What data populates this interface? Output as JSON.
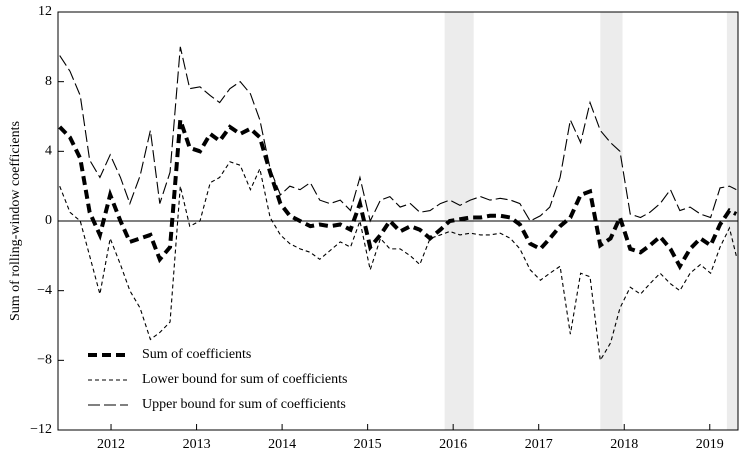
{
  "chart_data": {
    "type": "line",
    "ylabel": "Sum of rolling-window coefficients",
    "xlim": [
      2011.38,
      2019.33
    ],
    "ylim": [
      -12,
      12
    ],
    "xticks": [
      2012,
      2013,
      2014,
      2015,
      2016,
      2017,
      2018,
      2019
    ],
    "yticks": [
      12,
      8,
      4,
      0,
      {
        "value": -4,
        "label": "−4"
      },
      {
        "value": -8,
        "label": "−8"
      },
      {
        "value": -12,
        "label": "−12"
      }
    ],
    "grid": false,
    "hline": 0,
    "legend": "lower left",
    "shaded_x": [
      [
        2015.9,
        2016.24
      ],
      [
        2017.72,
        2017.98
      ],
      [
        2019.2,
        2019.33
      ]
    ],
    "x": [
      2011.4,
      2011.52,
      2011.64,
      2011.75,
      2011.87,
      2011.99,
      2012.11,
      2012.22,
      2012.34,
      2012.46,
      2012.57,
      2012.69,
      2012.81,
      2012.92,
      2013.04,
      2013.16,
      2013.27,
      2013.39,
      2013.51,
      2013.63,
      2013.74,
      2013.86,
      2013.98,
      2014.09,
      2014.21,
      2014.33,
      2014.44,
      2014.56,
      2014.68,
      2014.8,
      2014.91,
      2015.03,
      2015.15,
      2015.26,
      2015.38,
      2015.5,
      2015.61,
      2015.73,
      2015.85,
      2015.96,
      2016.08,
      2016.2,
      2016.32,
      2016.43,
      2016.55,
      2016.67,
      2016.78,
      2016.9,
      2017.02,
      2017.13,
      2017.25,
      2017.37,
      2017.49,
      2017.6,
      2017.72,
      2017.84,
      2017.95,
      2018.07,
      2018.19,
      2018.3,
      2018.42,
      2018.54,
      2018.65,
      2018.77,
      2018.89,
      2019.01,
      2019.12,
      2019.23,
      2019.31
    ],
    "series": [
      {
        "name": "Sum of coefficients",
        "color": "#000000",
        "width": 4,
        "dash": "9 5",
        "values": [
          5.4,
          4.8,
          3.6,
          0.5,
          -0.8,
          1.5,
          0,
          -1.2,
          -1.0,
          -0.8,
          -2.2,
          -1.5,
          5.8,
          4.2,
          4.0,
          5.0,
          4.6,
          5.4,
          5.0,
          5.3,
          4.8,
          2.8,
          1.0,
          0.3,
          0.0,
          -0.3,
          -0.2,
          -0.3,
          -0.2,
          -0.5,
          1.0,
          -1.5,
          -0.8,
          0.0,
          -0.6,
          -0.3,
          -0.5,
          -1.0,
          -0.5,
          0.0,
          0.1,
          0.2,
          0.2,
          0.3,
          0.3,
          0.2,
          -0.2,
          -1.3,
          -1.6,
          -1.0,
          -0.3,
          0.2,
          1.5,
          1.7,
          -1.4,
          -1.0,
          0.2,
          -1.6,
          -1.8,
          -1.4,
          -0.9,
          -1.6,
          -2.6,
          -1.6,
          -1.0,
          -1.4,
          -0.2,
          0.6,
          0.4
        ]
      },
      {
        "name": "Lower bound for sum of coefficients",
        "color": "#000000",
        "width": 1.1,
        "dash": "4 3",
        "values": [
          2.0,
          0.5,
          0.0,
          -2.0,
          -4.2,
          -1.0,
          -2.5,
          -4.0,
          -5.0,
          -6.8,
          -6.4,
          -5.8,
          2.0,
          -0.3,
          0.0,
          2.2,
          2.5,
          3.4,
          3.2,
          1.8,
          3.0,
          0.2,
          -0.8,
          -1.3,
          -1.6,
          -1.8,
          -2.2,
          -1.7,
          -1.2,
          -1.5,
          0.0,
          -2.8,
          -1.0,
          -1.6,
          -1.6,
          -2.0,
          -2.5,
          -1.0,
          -0.8,
          -0.6,
          -0.8,
          -0.7,
          -0.8,
          -0.8,
          -0.7,
          -1.0,
          -1.6,
          -2.8,
          -3.4,
          -3.0,
          -2.6,
          -6.5,
          -3.0,
          -3.2,
          -8.0,
          -7.0,
          -5.0,
          -3.8,
          -4.2,
          -3.6,
          -3.0,
          -3.6,
          -4.0,
          -3.0,
          -2.5,
          -3.0,
          -1.5,
          -0.4,
          -2.0
        ]
      },
      {
        "name": "Upper bound for sum of coefficients",
        "color": "#000000",
        "width": 1.1,
        "dash": "12 4",
        "values": [
          9.5,
          8.6,
          7.2,
          3.5,
          2.5,
          3.8,
          2.5,
          1.0,
          2.6,
          5.2,
          1.0,
          2.8,
          10.0,
          7.6,
          7.7,
          7.2,
          6.8,
          7.6,
          8.0,
          7.3,
          5.8,
          3.0,
          1.5,
          2.0,
          1.8,
          2.2,
          1.2,
          1.0,
          1.2,
          0.6,
          2.5,
          0.0,
          1.2,
          1.4,
          0.8,
          1.0,
          0.5,
          0.6,
          1.0,
          1.2,
          0.9,
          1.2,
          1.4,
          1.2,
          1.3,
          1.2,
          1.0,
          0.0,
          0.3,
          0.8,
          2.5,
          5.8,
          4.5,
          6.8,
          5.2,
          4.5,
          4.0,
          0.4,
          0.2,
          0.5,
          1.0,
          1.8,
          0.6,
          0.8,
          0.4,
          0.2,
          1.9,
          2.0,
          1.8
        ]
      }
    ]
  }
}
